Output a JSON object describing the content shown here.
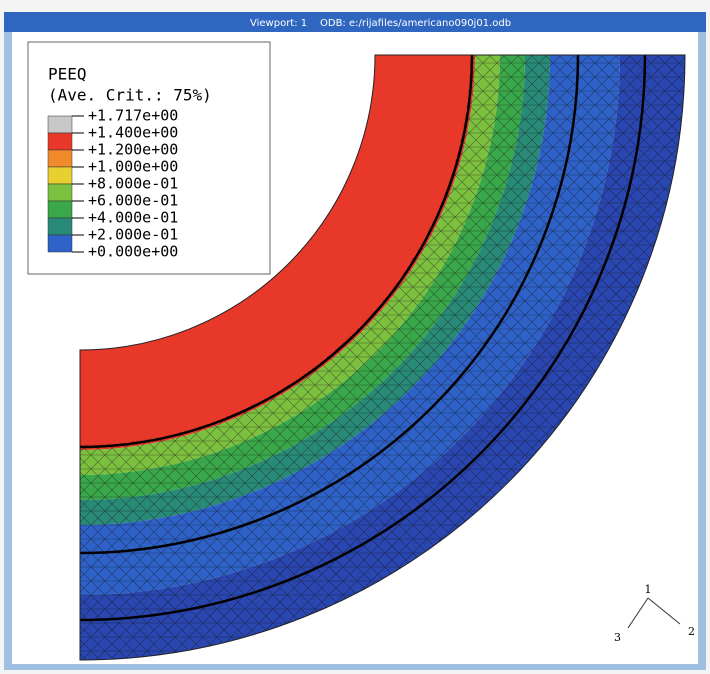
{
  "viewport": {
    "title": "Viewport: 1",
    "odb": "ODB: e:/rijafiles/americano090j01.odb"
  },
  "legend": {
    "variable": "PEEQ",
    "criterion": "(Ave. Crit.: 75%)",
    "levels": [
      {
        "label": "+1.717e+00",
        "color": "#c8c8c8"
      },
      {
        "label": "+1.400e+00",
        "color": "#e8382a"
      },
      {
        "label": "+1.200e+00",
        "color": "#f08a2a"
      },
      {
        "label": "+1.000e+00",
        "color": "#e8d030"
      },
      {
        "label": "+8.000e-01",
        "color": "#7cc040"
      },
      {
        "label": "+6.000e-01",
        "color": "#3aa84a"
      },
      {
        "label": "+4.000e-01",
        "color": "#2a8a78"
      },
      {
        "label": "+2.000e-01",
        "color": "#2e62c8"
      },
      {
        "label": "+0.000e+00",
        "color": "#2a46b0"
      }
    ]
  },
  "triad": {
    "axis_1": "1",
    "axis_2": "2",
    "axis_3": "3"
  }
}
